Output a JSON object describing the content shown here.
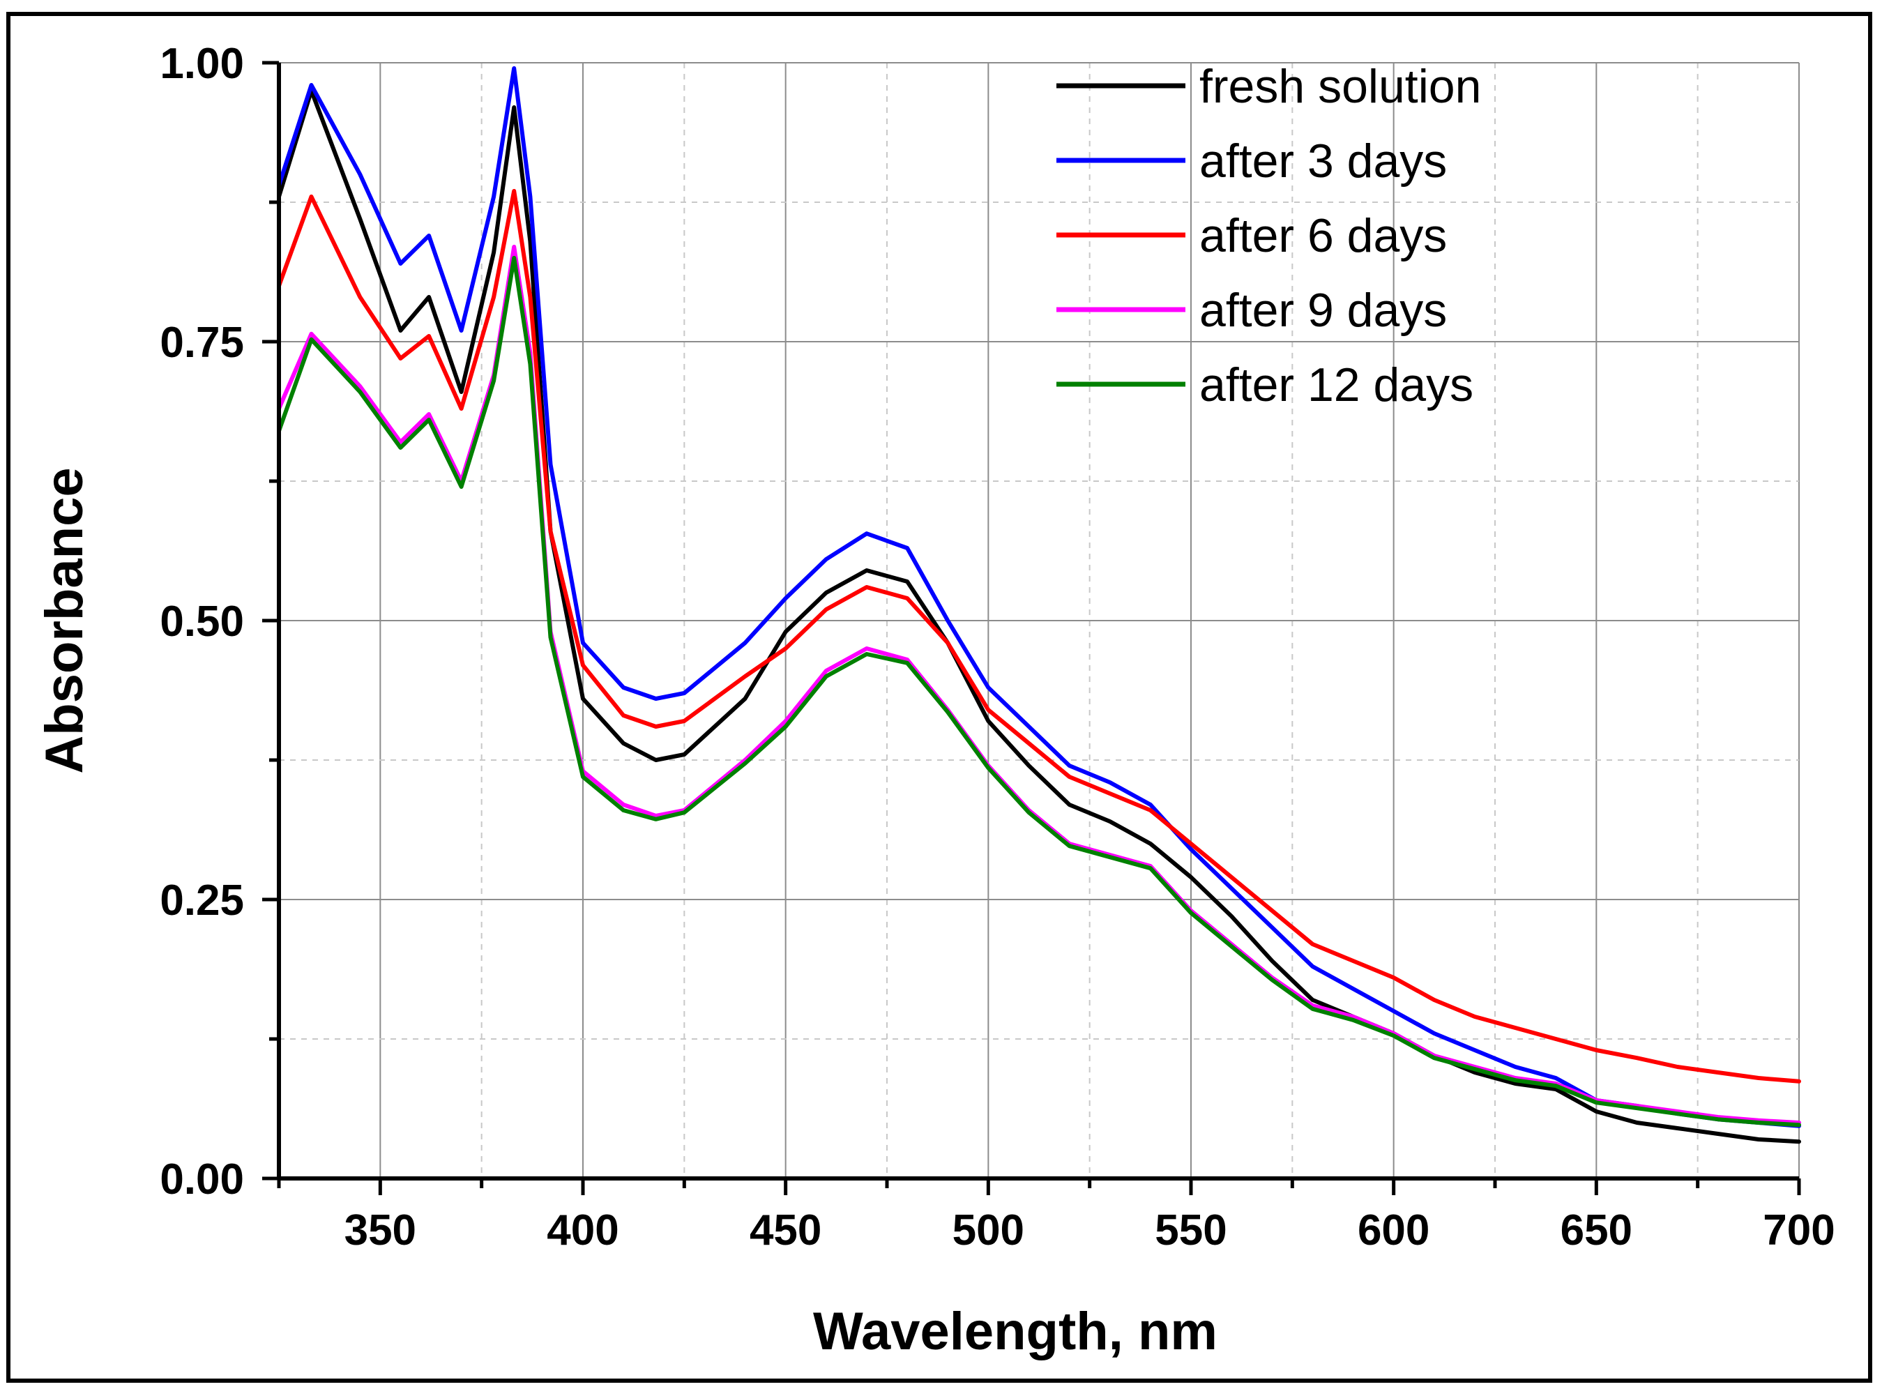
{
  "chart_data": {
    "type": "line",
    "title": "",
    "xlabel": "Wavelength, nm",
    "ylabel": "Absorbance",
    "xlim": [
      325,
      700
    ],
    "ylim": [
      0,
      1
    ],
    "xticks": [
      350,
      400,
      450,
      500,
      550,
      600,
      650,
      700
    ],
    "xtick_labels": [
      "350",
      "400",
      "450",
      "500",
      "550",
      "600",
      "650",
      "700"
    ],
    "yticks": [
      0,
      0.25,
      0.5,
      0.75,
      1.0
    ],
    "ytick_labels": [
      "0.00",
      "0.25",
      "0.50",
      "0.75",
      "1.00"
    ],
    "grid": true,
    "legend_position": "top-right",
    "x": [
      325,
      333,
      345,
      355,
      362,
      370,
      378,
      383,
      387,
      392,
      400,
      410,
      418,
      425,
      440,
      450,
      460,
      470,
      480,
      490,
      500,
      510,
      520,
      530,
      540,
      550,
      560,
      570,
      580,
      590,
      600,
      610,
      620,
      630,
      640,
      650,
      660,
      670,
      680,
      690,
      700
    ],
    "series": [
      {
        "name": "fresh solution",
        "color": "#000000",
        "values": [
          0.88,
          0.975,
          0.86,
          0.76,
          0.79,
          0.705,
          0.83,
          0.96,
          0.84,
          0.58,
          0.43,
          0.39,
          0.375,
          0.38,
          0.43,
          0.49,
          0.525,
          0.545,
          0.535,
          0.48,
          0.41,
          0.37,
          0.335,
          0.32,
          0.3,
          0.27,
          0.235,
          0.195,
          0.16,
          0.145,
          0.13,
          0.11,
          0.095,
          0.085,
          0.08,
          0.06,
          0.05,
          0.045,
          0.04,
          0.035,
          0.033
        ]
      },
      {
        "name": "after 3 days",
        "color": "#0000ff",
        "values": [
          0.89,
          0.98,
          0.9,
          0.82,
          0.845,
          0.76,
          0.88,
          0.995,
          0.88,
          0.64,
          0.48,
          0.44,
          0.43,
          0.435,
          0.48,
          0.52,
          0.555,
          0.578,
          0.565,
          0.5,
          0.44,
          0.405,
          0.37,
          0.355,
          0.335,
          0.295,
          0.26,
          0.225,
          0.19,
          0.17,
          0.15,
          0.13,
          0.115,
          0.1,
          0.09,
          0.07,
          0.065,
          0.058,
          0.053,
          0.05,
          0.047
        ]
      },
      {
        "name": "after 6 days",
        "color": "#ff0000",
        "values": [
          0.8,
          0.88,
          0.79,
          0.735,
          0.755,
          0.69,
          0.79,
          0.885,
          0.79,
          0.58,
          0.46,
          0.415,
          0.405,
          0.41,
          0.45,
          0.475,
          0.51,
          0.53,
          0.52,
          0.48,
          0.42,
          0.39,
          0.36,
          0.345,
          0.33,
          0.3,
          0.27,
          0.24,
          0.21,
          0.195,
          0.18,
          0.16,
          0.145,
          0.135,
          0.125,
          0.115,
          0.108,
          0.1,
          0.095,
          0.09,
          0.087
        ]
      },
      {
        "name": "after 9 days",
        "color": "#ff00ff",
        "values": [
          0.69,
          0.757,
          0.71,
          0.66,
          0.685,
          0.625,
          0.72,
          0.835,
          0.74,
          0.49,
          0.365,
          0.335,
          0.325,
          0.33,
          0.375,
          0.41,
          0.455,
          0.475,
          0.465,
          0.42,
          0.37,
          0.33,
          0.3,
          0.29,
          0.28,
          0.24,
          0.21,
          0.18,
          0.155,
          0.145,
          0.13,
          0.11,
          0.1,
          0.09,
          0.085,
          0.07,
          0.065,
          0.06,
          0.055,
          0.052,
          0.05
        ]
      },
      {
        "name": "after 12 days",
        "color": "#008000",
        "values": [
          0.67,
          0.752,
          0.705,
          0.655,
          0.68,
          0.62,
          0.715,
          0.825,
          0.73,
          0.485,
          0.36,
          0.33,
          0.322,
          0.328,
          0.372,
          0.405,
          0.45,
          0.47,
          0.462,
          0.418,
          0.368,
          0.328,
          0.298,
          0.288,
          0.278,
          0.238,
          0.208,
          0.178,
          0.152,
          0.142,
          0.128,
          0.108,
          0.098,
          0.088,
          0.083,
          0.068,
          0.063,
          0.058,
          0.053,
          0.05,
          0.048
        ]
      }
    ]
  }
}
